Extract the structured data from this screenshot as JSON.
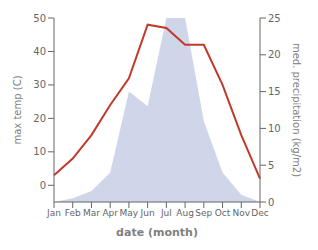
{
  "chart_data": {
    "type": "line",
    "xlabel": "date (month)",
    "ylabel": "max temp (C)",
    "y2label": "med. precipitation (kg/m2)",
    "categories": [
      "Jan",
      "Feb",
      "Mar",
      "Apr",
      "May",
      "Jun",
      "Jul",
      "Aug",
      "Sep",
      "Oct",
      "Nov",
      "Dec"
    ],
    "series": [
      {
        "type": "area",
        "axis": "y2",
        "color": "#aab4d8",
        "values": [
          0.0,
          0.5,
          1.5,
          4.0,
          15.0,
          13.0,
          25.0,
          25.0,
          11.0,
          4.0,
          1.0,
          0.0
        ]
      },
      {
        "type": "line",
        "axis": "y",
        "color": "#c0392b",
        "values": [
          3,
          8,
          15,
          24,
          32,
          48,
          47,
          42,
          42,
          30,
          15,
          2
        ]
      }
    ],
    "ylim": [
      -5,
      50
    ],
    "yticks": [
      0,
      10,
      20,
      30,
      40,
      50
    ],
    "y2lim": [
      0,
      25
    ],
    "y2ticks": [
      0,
      5,
      10,
      15,
      20,
      25
    ],
    "grid": false
  }
}
